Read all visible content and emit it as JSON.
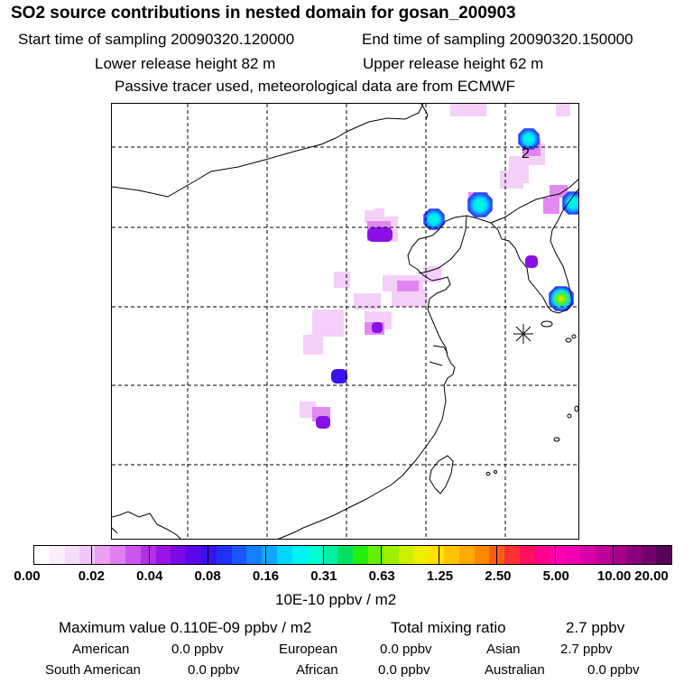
{
  "header": {
    "title": "SO2 source contributions in nested domain for gosan_200903",
    "start_sampling": "Start time of sampling 20090320.120000",
    "end_sampling": "End time of sampling 20090320.150000",
    "lower_release": "Lower release height   82 m",
    "upper_release": "Upper release height   62 m",
    "note": "Passive tracer used, meteorological data are from ECMWF"
  },
  "map": {
    "label_2": "2",
    "receptor_marker": "asterisk-icon"
  },
  "colorbar": {
    "ticks": [
      "0.00",
      "0.02",
      "0.04",
      "0.08",
      "0.16",
      "0.31",
      "0.63",
      "1.25",
      "2.50",
      "5.00",
      "10.00",
      "20.00"
    ],
    "units": "10E-10 ppbv / m2",
    "colors": [
      "#ffffff",
      "#fbeefd",
      "#f6dcfb",
      "#f1c6f8",
      "#eca0f4",
      "#e07ef0",
      "#cc55ee",
      "#b52ee8",
      "#9a14e6",
      "#7a0ae6",
      "#5a08ea",
      "#3a12f0",
      "#2030ff",
      "#1a58ff",
      "#1480ff",
      "#0fa8ff",
      "#00d8ff",
      "#00f2f2",
      "#00ffd6",
      "#00f0a8",
      "#00e060",
      "#22ee10",
      "#66f000",
      "#9cf000",
      "#ccf000",
      "#eeee00",
      "#ffe000",
      "#ffc400",
      "#ffa800",
      "#ff8800",
      "#ff5c18",
      "#ff3030",
      "#ff1060",
      "#ff0090",
      "#ff00b0",
      "#f000b4",
      "#d800a8",
      "#c0009a",
      "#a6008c",
      "#8c007e",
      "#72006c",
      "#580058"
    ]
  },
  "summary": {
    "max_value": "Maximum value  0.110E-09 ppbv / m2",
    "total_mixing": "Total mixing ratio",
    "total_value": "2.7 ppbv",
    "row1": [
      {
        "label": "American",
        "value": "0.0 ppbv"
      },
      {
        "label": "European",
        "value": "0.0 ppbv"
      },
      {
        "label": "Asian",
        "value": "2.7 ppbv"
      }
    ],
    "row2": [
      {
        "label": "South American",
        "value": "0.0 ppbv"
      },
      {
        "label": "African",
        "value": "0.0 ppbv"
      },
      {
        "label": "Australian",
        "value": "0.0 ppbv"
      }
    ]
  }
}
